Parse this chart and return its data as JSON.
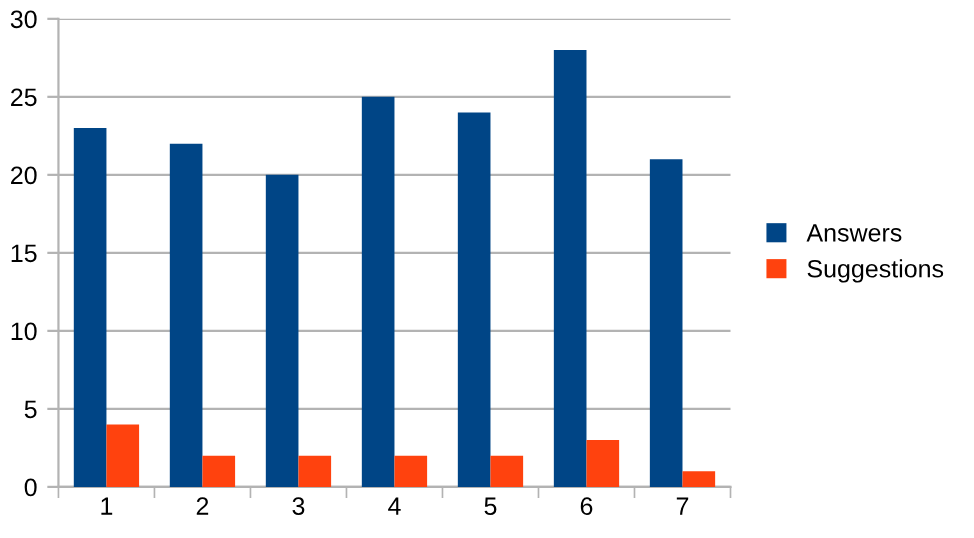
{
  "chart_data": {
    "type": "bar",
    "categories": [
      "1",
      "2",
      "3",
      "4",
      "5",
      "6",
      "7"
    ],
    "series": [
      {
        "name": "Answers",
        "color": "#004586",
        "values": [
          23,
          22,
          20,
          25,
          24,
          28,
          21
        ]
      },
      {
        "name": "Suggestions",
        "color": "#ff420e",
        "values": [
          4,
          2,
          2,
          2,
          2,
          3,
          1
        ]
      }
    ],
    "ylim": [
      0,
      30
    ],
    "yticks": [
      0,
      5,
      10,
      15,
      20,
      25,
      30
    ],
    "grid": "y",
    "legend": "right"
  }
}
